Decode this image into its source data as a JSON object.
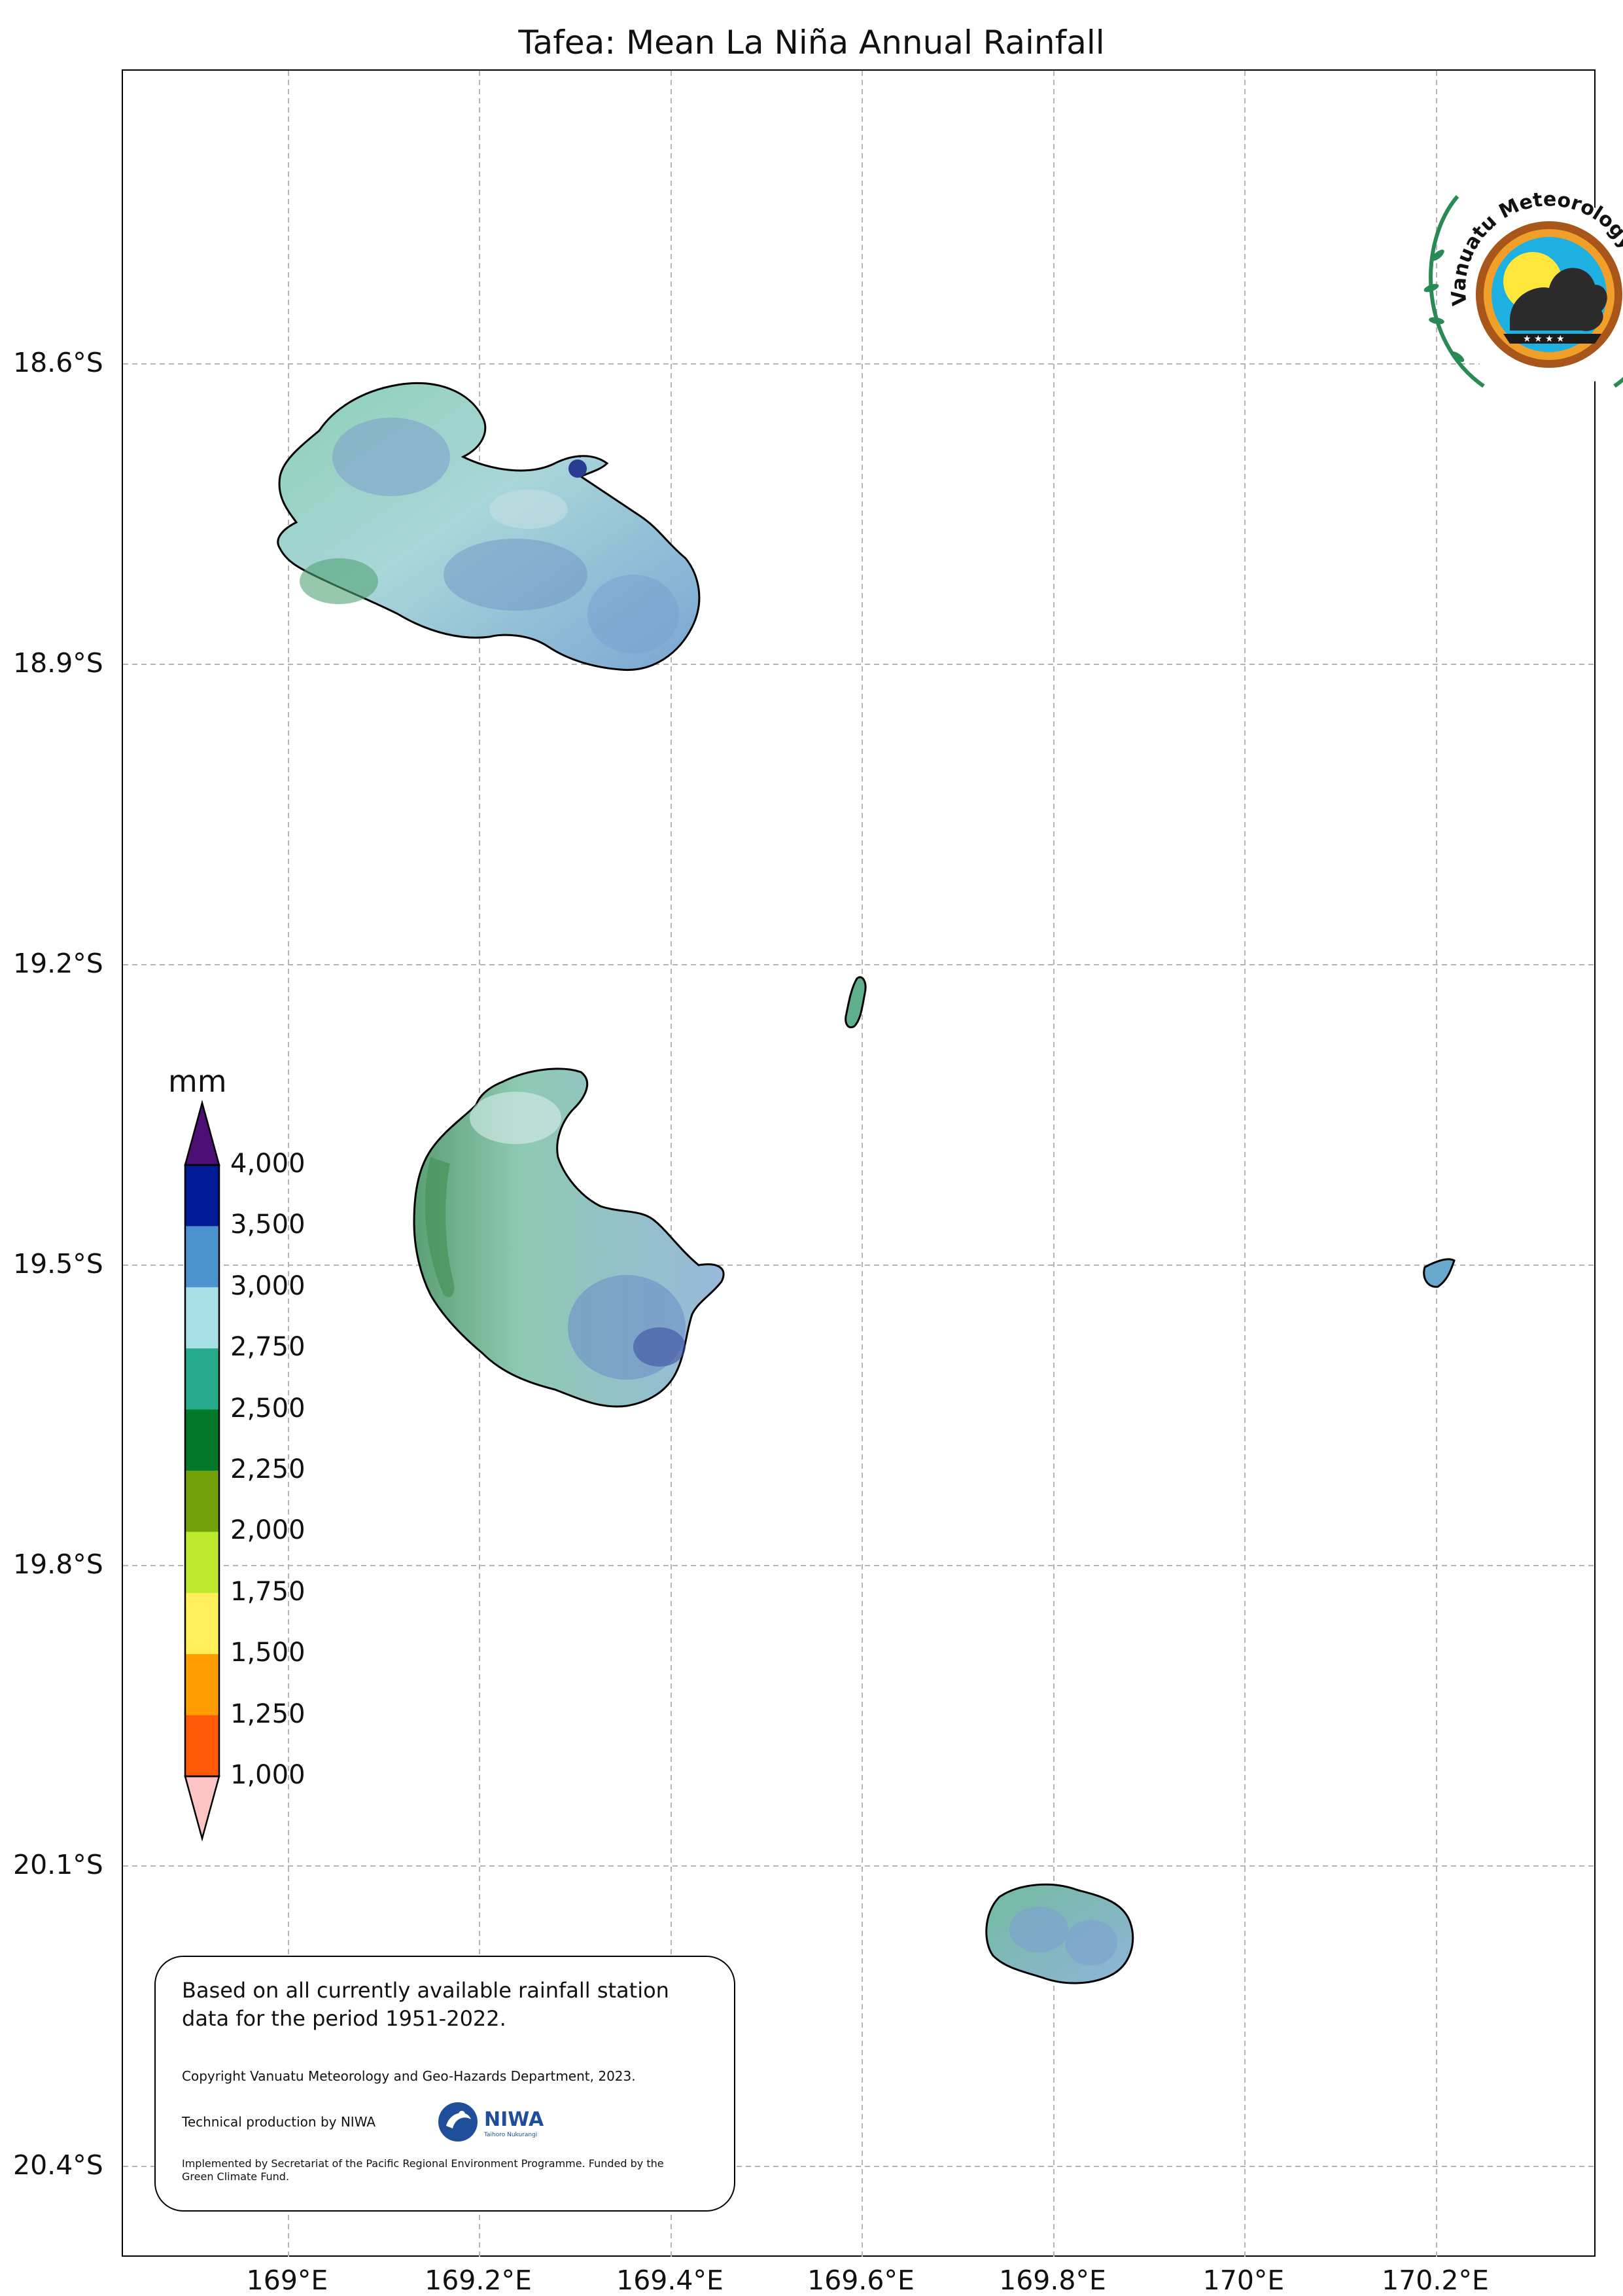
{
  "title": "Tafea: Mean La Niña Annual Rainfall",
  "latitude_labels": [
    "18.6°S",
    "18.9°S",
    "19.2°S",
    "19.5°S",
    "19.8°S",
    "20.1°S",
    "20.4°S"
  ],
  "longitude_labels": [
    "169°E",
    "169.2°E",
    "169.4°E",
    "169.6°E",
    "169.8°E",
    "170°E",
    "170.2°E"
  ],
  "colorbar": {
    "unit": "mm",
    "labels": [
      "4,000",
      "3,500",
      "3,000",
      "2,750",
      "2,500",
      "2,250",
      "2,000",
      "1,750",
      "1,500",
      "1,250",
      "1,000"
    ],
    "colors": [
      "#011b95",
      "#4a93cf",
      "#a7dfe6",
      "#26ab8c",
      "#01782a",
      "#72a109",
      "#bde92c",
      "#ffef5a",
      "#ff9e04",
      "#ff5806"
    ],
    "over_color": "#4b0f76",
    "under_color": "#fdc4c4"
  },
  "note": {
    "main": "Based on all currently available rainfall station data for the period 1951-2022.",
    "copyright": "Copyright Vanuatu Meteorology and Geo-Hazards Department, 2023.",
    "technical": "Technical production by NIWA",
    "implemented": "Implemented by Secretariat of the Pacific Regional Environment Programme. Funded by the Green Climate Fund."
  },
  "niwa_logo": {
    "name": "NIWA",
    "tagline": "Taihoro Nukurangi"
  },
  "logo": {
    "text": "Department Vanuatu Meteorology and Geo-Hazards"
  }
}
